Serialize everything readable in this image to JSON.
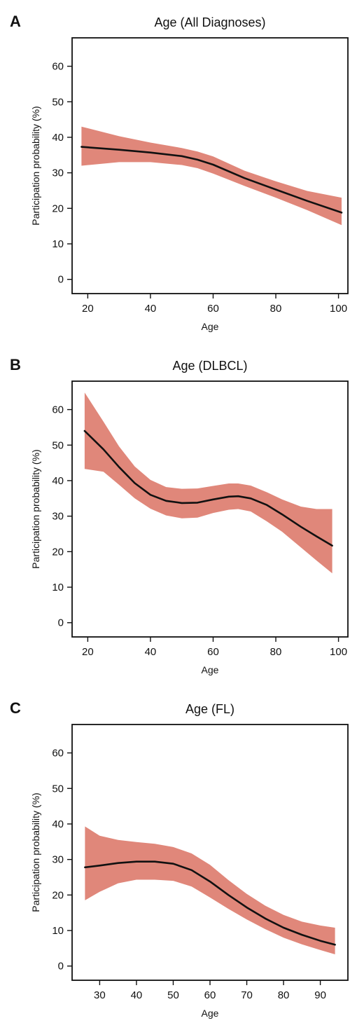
{
  "colors": {
    "band": "#e0877a",
    "line": "#111111",
    "frame": "#111111"
  },
  "chart_data": [
    {
      "panel": "A",
      "title": "Age (All Diagnoses)",
      "type": "line",
      "xlabel": "Age",
      "ylabel": "Participation probability (%)",
      "xlim": [
        15,
        103
      ],
      "ylim": [
        -4,
        68
      ],
      "xticks": [
        20,
        40,
        60,
        80,
        100
      ],
      "yticks": [
        0,
        10,
        20,
        30,
        40,
        50,
        60
      ],
      "grid": false,
      "series": [
        {
          "x": [
            18,
            30,
            40,
            50,
            55,
            60,
            70,
            80,
            90,
            101
          ],
          "y": [
            37.3,
            36.5,
            35.7,
            34.7,
            33.7,
            32.3,
            28.5,
            25.3,
            22.1,
            18.8
          ],
          "lower": [
            32.0,
            33.0,
            33.0,
            32.2,
            31.3,
            29.8,
            26.3,
            23.0,
            19.5,
            15.3
          ],
          "upper": [
            43.0,
            40.3,
            38.5,
            37.0,
            36.0,
            34.6,
            30.6,
            27.6,
            24.9,
            23.0
          ]
        }
      ]
    },
    {
      "panel": "B",
      "title": "Age (DLBCL)",
      "type": "line",
      "xlabel": "Age",
      "ylabel": "Participation probability (%)",
      "xlim": [
        15,
        103
      ],
      "ylim": [
        -4,
        68
      ],
      "xticks": [
        20,
        40,
        60,
        80,
        100
      ],
      "yticks": [
        0,
        10,
        20,
        30,
        40,
        50,
        60
      ],
      "grid": false,
      "series": [
        {
          "x": [
            19,
            25,
            30,
            35,
            40,
            45,
            50,
            55,
            60,
            65,
            68,
            72,
            77,
            82,
            88,
            93,
            98
          ],
          "y": [
            54.0,
            48.8,
            43.8,
            39.3,
            36.0,
            34.3,
            33.7,
            33.8,
            34.7,
            35.5,
            35.6,
            35.0,
            33.2,
            30.5,
            27.0,
            24.3,
            21.7
          ],
          "lower": [
            43.3,
            42.5,
            38.8,
            35.0,
            32.1,
            30.2,
            29.4,
            29.6,
            30.9,
            31.8,
            32.0,
            31.3,
            28.6,
            25.6,
            21.2,
            17.5,
            13.9
          ],
          "upper": [
            64.8,
            56.6,
            49.6,
            44.0,
            40.2,
            38.2,
            37.7,
            37.8,
            38.5,
            39.2,
            39.2,
            38.6,
            36.8,
            34.7,
            32.7,
            32.0,
            32.0
          ]
        }
      ]
    },
    {
      "panel": "C",
      "title": "Age (FL)",
      "type": "line",
      "xlabel": "Age",
      "ylabel": "Participation probability (%)",
      "xlim": [
        22.5,
        97.5
      ],
      "ylim": [
        -4,
        68
      ],
      "xticks": [
        30,
        40,
        50,
        60,
        70,
        80,
        90
      ],
      "yticks": [
        0,
        10,
        20,
        30,
        40,
        50,
        60
      ],
      "grid": false,
      "series": [
        {
          "x": [
            26,
            30,
            35,
            40,
            45,
            50,
            55,
            60,
            65,
            70,
            75,
            80,
            85,
            90,
            94
          ],
          "y": [
            27.8,
            28.3,
            29.0,
            29.4,
            29.4,
            28.8,
            27.0,
            23.8,
            20.0,
            16.5,
            13.4,
            10.8,
            8.8,
            7.1,
            6.0
          ],
          "lower": [
            18.5,
            20.9,
            23.3,
            24.3,
            24.3,
            24.0,
            22.4,
            19.3,
            16.1,
            13.1,
            10.4,
            8.0,
            6.1,
            4.5,
            3.3
          ],
          "upper": [
            39.3,
            36.7,
            35.5,
            34.9,
            34.4,
            33.5,
            31.7,
            28.5,
            24.2,
            20.3,
            17.0,
            14.4,
            12.5,
            11.4,
            10.8
          ]
        }
      ]
    }
  ]
}
